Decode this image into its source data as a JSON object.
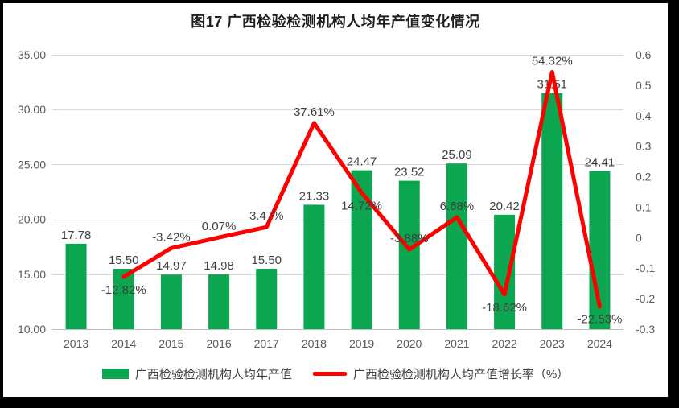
{
  "window": {
    "kind": "chart-figure"
  },
  "colors": {
    "frame": "#000000",
    "background": "#ffffff",
    "bar_green": "#0BA64F",
    "line_red": "#FE0000",
    "grid": "#D9D9D9",
    "axis_line": "#BFBFBF",
    "axis_text": "#595959",
    "data_label": "#404040",
    "title_text": "#1F1F1F"
  },
  "chart_data": {
    "type": "combo-bar-line",
    "title": "图17  广西检验检测机构人均年产值变化情况",
    "categories": [
      "2013",
      "2014",
      "2015",
      "2016",
      "2017",
      "2018",
      "2019",
      "2020",
      "2021",
      "2022",
      "2023",
      "2024"
    ],
    "series": [
      {
        "name": "广西检验检测机构人均年产值",
        "type": "bar",
        "axis": "left",
        "color": "#0BA64F",
        "values": [
          17.78,
          15.5,
          14.97,
          14.98,
          15.5,
          21.33,
          24.47,
          23.52,
          25.09,
          20.42,
          31.51,
          24.41
        ],
        "labels": [
          "17.78",
          "15.50",
          "14.97",
          "14.98",
          "15.50",
          "21.33",
          "24.47",
          "23.52",
          "25.09",
          "20.42",
          "31.51",
          "24.41"
        ]
      },
      {
        "name": "广西检验检测机构人均产值增长率（%）",
        "type": "line",
        "axis": "right",
        "color": "#FE0000",
        "values": [
          null,
          -0.1282,
          -0.0342,
          0.0007,
          0.0347,
          0.3761,
          0.1472,
          -0.0388,
          0.0668,
          -0.1862,
          0.5432,
          -0.2253
        ],
        "labels": [
          null,
          "-12.82%",
          "-3.42%",
          "0.07%",
          "3.47%",
          "37.61%",
          "14.72%",
          "-3.88%",
          "6.68%",
          "-18.62%",
          "54.32%",
          "-22.53%"
        ],
        "label_sides": [
          null,
          "below",
          "above",
          "above",
          "above",
          "above",
          "below",
          "above",
          "above",
          "below",
          "above",
          "below"
        ]
      }
    ],
    "left_axis": {
      "min": 10,
      "max": 35,
      "tick_values": [
        35,
        30,
        25,
        20,
        15,
        10
      ],
      "tick_labels": [
        "35.00",
        "30.00",
        "25.00",
        "20.00",
        "15.00",
        "10.00"
      ]
    },
    "right_axis": {
      "min": -0.3,
      "max": 0.6,
      "tick_values": [
        0.6,
        0.5,
        0.4,
        0.3,
        0.2,
        0.1,
        0,
        -0.1,
        -0.2,
        -0.3
      ],
      "tick_labels": [
        "0.6",
        "0.5",
        "0.4",
        "0.3",
        "0.2",
        "0.1",
        "0",
        "-0.1",
        "-0.2",
        "-0.3"
      ]
    },
    "grid": true,
    "legend_position": "bottom"
  }
}
